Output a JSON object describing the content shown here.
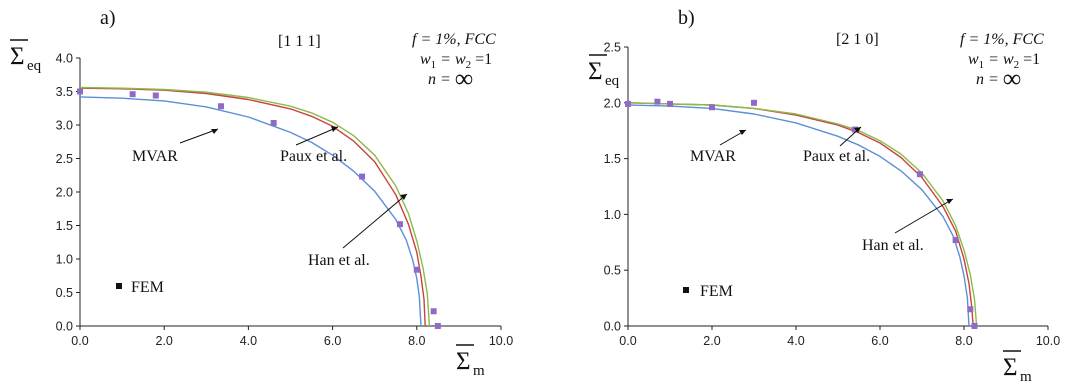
{
  "figure": {
    "panels": [
      {
        "label": "a)",
        "direction": "[1 1 1]",
        "params": {
          "f_line": "f = 1%, FCC",
          "w_w": "w",
          "w_sub1": "1",
          "w_eq": " = w",
          "w_sub2": "2",
          "w_tail": " =1",
          "n_prefix": "n = ",
          "n_value": "∞"
        },
        "ylabel": {
          "main": "Σ",
          "sub": "eq"
        },
        "xlabel": {
          "main": "Σ",
          "sub": "m"
        },
        "annotations": {
          "mvar": "MVAR",
          "paux": "Paux et al.",
          "han": "Han et al.",
          "fem": "FEM"
        }
      },
      {
        "label": "b)",
        "direction": "[2 1 0]",
        "params": {
          "f_line": "f = 1%, FCC",
          "w_w": "w",
          "w_sub1": "1",
          "w_eq": " = w",
          "w_sub2": "2",
          "w_tail": " =1",
          "n_prefix": "n = ",
          "n_value": "∞"
        },
        "ylabel": {
          "main": "Σ",
          "sub": "eq"
        },
        "xlabel": {
          "main": "Σ",
          "sub": "m"
        },
        "annotations": {
          "mvar": "MVAR",
          "paux": "Paux et al.",
          "han": "Han et al.",
          "fem": "FEM"
        }
      }
    ]
  },
  "colors": {
    "mvar": "#5b8fd6",
    "paux": "#8aba4a",
    "han": "#c9423e",
    "fem": "#8e6cc6",
    "legend_marker": "#111111",
    "axis": "#222222"
  },
  "chart_data": [
    {
      "type": "line",
      "title": "",
      "xlabel": "Σm",
      "ylabel": "Σeq",
      "xlim": [
        0,
        10
      ],
      "ylim": [
        0,
        4
      ],
      "xticks": [
        "0.0",
        "2.0",
        "4.0",
        "6.0",
        "8.0",
        "10.0"
      ],
      "yticks": [
        "0.0",
        "0.5",
        "1.0",
        "1.5",
        "2.0",
        "2.5",
        "3.0",
        "3.5",
        "4.0"
      ],
      "grid": false,
      "series": [
        {
          "name": "MVAR",
          "color": "#5b8fd6",
          "x": [
            0,
            1,
            2,
            3,
            4,
            5,
            5.5,
            6,
            6.5,
            7,
            7.5,
            7.75,
            7.9,
            8.0,
            8.06,
            8.1
          ],
          "y": [
            3.42,
            3.4,
            3.36,
            3.27,
            3.12,
            2.89,
            2.74,
            2.55,
            2.31,
            2.01,
            1.59,
            1.28,
            0.99,
            0.71,
            0.44,
            0.0
          ]
        },
        {
          "name": "Han et al.",
          "color": "#c9423e",
          "x": [
            0,
            1,
            2,
            3,
            4,
            5,
            5.5,
            6,
            6.5,
            7,
            7.5,
            7.8,
            8.0,
            8.1,
            8.17,
            8.2
          ],
          "y": [
            3.55,
            3.54,
            3.52,
            3.47,
            3.38,
            3.24,
            3.13,
            2.98,
            2.76,
            2.45,
            1.96,
            1.52,
            1.1,
            0.74,
            0.4,
            0.0
          ]
        },
        {
          "name": "Paux et al.",
          "color": "#8aba4a",
          "x": [
            0,
            1,
            2,
            3,
            4,
            5,
            5.5,
            6,
            6.5,
            7,
            7.5,
            7.8,
            8.0,
            8.15,
            8.25,
            8.3
          ],
          "y": [
            3.56,
            3.55,
            3.53,
            3.49,
            3.41,
            3.28,
            3.18,
            3.04,
            2.84,
            2.55,
            2.09,
            1.68,
            1.27,
            0.86,
            0.48,
            0.0
          ]
        },
        {
          "name": "FEM",
          "color": "#8e6cc6",
          "marker": "square",
          "x": [
            0.0,
            1.25,
            1.8,
            3.35,
            4.6,
            6.7,
            7.6,
            8.0,
            8.4,
            8.5
          ],
          "y": [
            3.5,
            3.46,
            3.44,
            3.28,
            3.03,
            2.23,
            1.52,
            0.84,
            0.22,
            0.0
          ]
        }
      ]
    },
    {
      "type": "line",
      "title": "",
      "xlabel": "Σm",
      "ylabel": "Σeq",
      "xlim": [
        0,
        10
      ],
      "ylim": [
        0,
        2.5
      ],
      "xticks": [
        "0.0",
        "2.0",
        "4.0",
        "6.0",
        "8.0",
        "10.0"
      ],
      "yticks": [
        "0.0",
        "0.5",
        "1.0",
        "1.5",
        "2.0",
        "2.5"
      ],
      "grid": false,
      "series": [
        {
          "name": "MVAR",
          "color": "#5b8fd6",
          "x": [
            0,
            1,
            2,
            3,
            4,
            5,
            5.5,
            6,
            6.5,
            7,
            7.5,
            7.75,
            7.9,
            8.0,
            8.08,
            8.12
          ],
          "y": [
            1.98,
            1.97,
            1.95,
            1.9,
            1.82,
            1.7,
            1.62,
            1.52,
            1.39,
            1.22,
            0.98,
            0.8,
            0.62,
            0.45,
            0.25,
            0.0
          ]
        },
        {
          "name": "Han et al.",
          "color": "#c9423e",
          "x": [
            0,
            1,
            2,
            3,
            4,
            5,
            5.5,
            6,
            6.5,
            7,
            7.5,
            7.8,
            8.0,
            8.12,
            8.18,
            8.22
          ],
          "y": [
            2.0,
            1.99,
            1.98,
            1.95,
            1.89,
            1.8,
            1.73,
            1.64,
            1.51,
            1.33,
            1.07,
            0.85,
            0.6,
            0.38,
            0.18,
            0.0
          ]
        },
        {
          "name": "Paux et al.",
          "color": "#8aba4a",
          "x": [
            0,
            1,
            2,
            3,
            4,
            5,
            5.5,
            6,
            6.5,
            7,
            7.5,
            7.8,
            8.0,
            8.15,
            8.25,
            8.3
          ],
          "y": [
            2.0,
            1.99,
            1.98,
            1.95,
            1.9,
            1.81,
            1.75,
            1.66,
            1.54,
            1.37,
            1.12,
            0.9,
            0.68,
            0.46,
            0.24,
            0.0
          ]
        },
        {
          "name": "FEM",
          "color": "#8e6cc6",
          "marker": "square",
          "x": [
            0.0,
            0.7,
            1.0,
            2.0,
            3.0,
            5.4,
            6.95,
            7.8,
            8.15,
            8.25
          ],
          "y": [
            1.99,
            2.01,
            1.99,
            1.96,
            2.0,
            1.76,
            1.36,
            0.77,
            0.15,
            0.0
          ]
        }
      ]
    }
  ]
}
